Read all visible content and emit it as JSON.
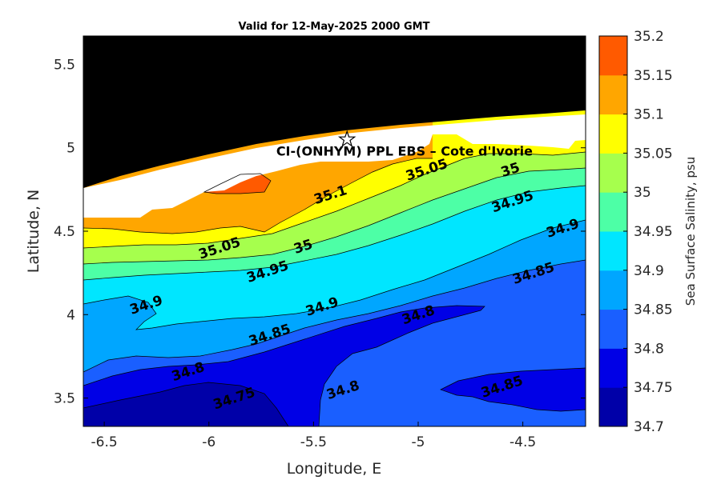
{
  "chart_data": {
    "type": "heatmap",
    "title": "Valid for 12-May-2025 2000 GMT",
    "xlabel": "Longitude, E",
    "ylabel": "Latitude, N",
    "xlim": [
      -6.6,
      -4.2
    ],
    "ylim": [
      3.33,
      5.67
    ],
    "xticks": [
      -6.5,
      -6,
      -5.5,
      -5,
      -4.5
    ],
    "xtick_labels": [
      "-6.5",
      "-6",
      "-5.5",
      "-5",
      "-4.5"
    ],
    "yticks": [
      3.5,
      4,
      4.5,
      5,
      5.5
    ],
    "ytick_labels": [
      "3.5",
      "4",
      "4.5",
      "5",
      "5.5"
    ],
    "colorbar": {
      "label": "Sea Surface Salinity, psu",
      "levels": [
        34.7,
        34.75,
        34.8,
        34.85,
        34.9,
        34.95,
        35,
        35.05,
        35.1,
        35.15,
        35.2
      ],
      "tick_labels": [
        "34.7",
        "34.75",
        "34.8",
        "34.85",
        "34.9",
        "34.95",
        "35",
        "35.05",
        "35.1",
        "35.15",
        "35.2"
      ],
      "colors": [
        "#0000a8",
        "#0000e6",
        "#1a5fff",
        "#00a6ff",
        "#00e6ff",
        "#4dffa6",
        "#a6ff4d",
        "#ffff00",
        "#ffa600",
        "#ff5a00"
      ]
    },
    "station": {
      "lon": -5.34,
      "lat": 5.05,
      "marker": "star",
      "label": "CI-(ONHYM) PPL EBS  – Cote d'Ivorie"
    },
    "land_color": "#000000",
    "contour_labels": [
      {
        "text": "35.1",
        "lon": -5.42,
        "lat": 4.72
      },
      {
        "text": "35.05",
        "lon": -4.96,
        "lat": 4.87
      },
      {
        "text": "35",
        "lon": -4.56,
        "lat": 4.87
      },
      {
        "text": "34.95",
        "lon": -4.55,
        "lat": 4.68
      },
      {
        "text": "34.9",
        "lon": -4.31,
        "lat": 4.52
      },
      {
        "text": "35.05",
        "lon": -5.95,
        "lat": 4.4
      },
      {
        "text": "35",
        "lon": -5.55,
        "lat": 4.41
      },
      {
        "text": "34.95",
        "lon": -5.72,
        "lat": 4.26
      },
      {
        "text": "34.85",
        "lon": -4.45,
        "lat": 4.25
      },
      {
        "text": "34.9",
        "lon": -6.3,
        "lat": 4.06
      },
      {
        "text": "34.9",
        "lon": -5.46,
        "lat": 4.05
      },
      {
        "text": "34.8",
        "lon": -5.0,
        "lat": 4.0
      },
      {
        "text": "34.85",
        "lon": -5.71,
        "lat": 3.88
      },
      {
        "text": "34.8",
        "lon": -6.1,
        "lat": 3.66
      },
      {
        "text": "34.75",
        "lon": -5.88,
        "lat": 3.5
      },
      {
        "text": "34.8",
        "lon": -5.36,
        "lat": 3.55
      },
      {
        "text": "34.85",
        "lon": -4.6,
        "lat": 3.57
      }
    ]
  }
}
